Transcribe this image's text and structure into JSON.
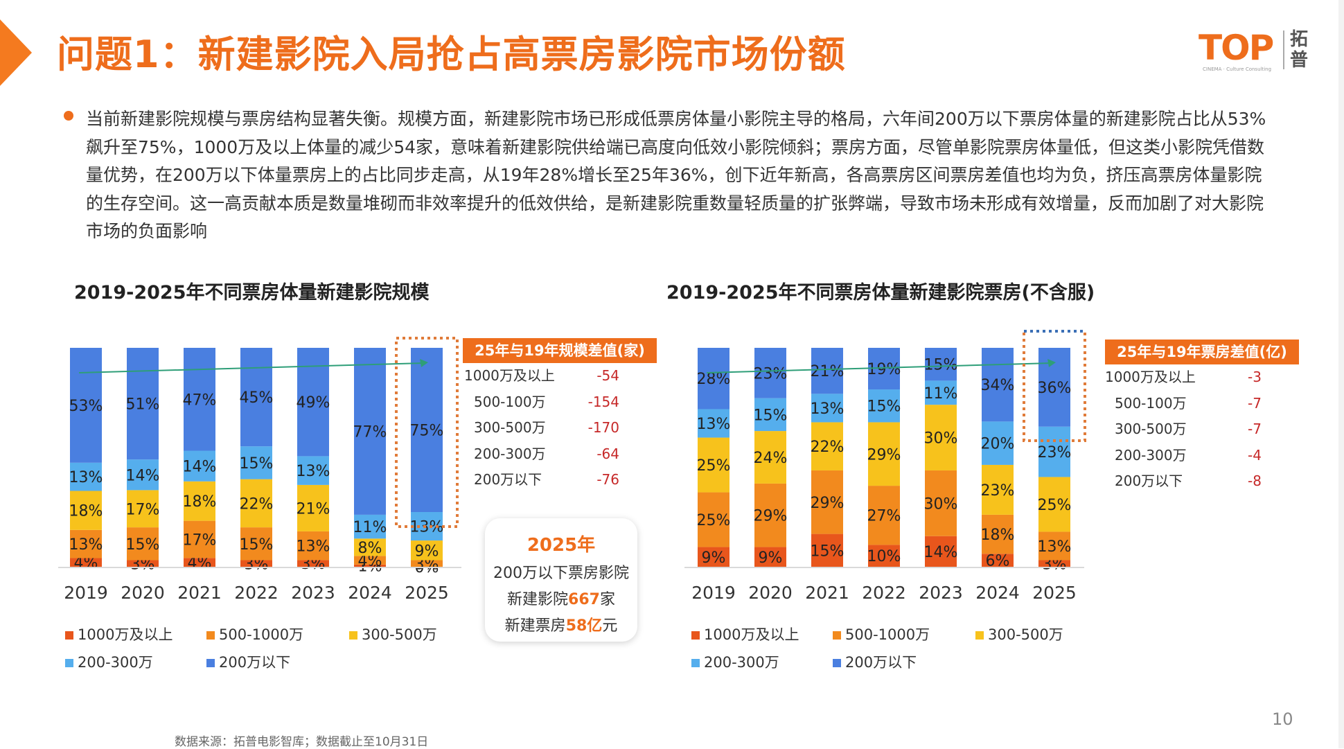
{
  "header": {
    "title": "问题1：新建影院入局抢占高票房影院市场份额",
    "logo_text": "TOP",
    "logo_cn": "拓普",
    "logo_sub": "CINEMA · Culture Consulting"
  },
  "intro": {
    "text": "当前新建影院规模与票房结构显著失衡。规模方面，新建影院市场已形成低票房体量小影院主导的格局，六年间200万以下票房体量的新建影院占比从53%飙升至75%，1000万及以上体量的减少54家，意味着新建影院供给端已高度向低效小影院倾斜；票房方面，尽管单影院票房体量低，但这类小影院凭借数量优势，在200万以下体量票房上的占比同步走高，从19年28%增长至25年36%，创下近年新高，各高票房区间票房差值也均为负，挤压高票房体量影院的生存空间。这一高贡献本质是数量堆砌而非效率提升的低效供给，是新建影院重数量轻质量的扩张弊端，导致市场未形成有效增量，反而加剧了对大影院市场的负面影响"
  },
  "chart_data": [
    {
      "type": "bar",
      "stacked": true,
      "normalized": true,
      "title": "2019-2025年不同票房体量新建影院规模",
      "categories": [
        "2019",
        "2020",
        "2021",
        "2022",
        "2023",
        "2024",
        "2025"
      ],
      "series": [
        {
          "name": "1000万及以上",
          "color": "#e8561c",
          "values": [
            4,
            3,
            4,
            3,
            3,
            1,
            0
          ]
        },
        {
          "name": "500-1000万",
          "color": "#f28a1e",
          "values": [
            13,
            15,
            17,
            15,
            13,
            4,
            3
          ]
        },
        {
          "name": "300-500万",
          "color": "#f7c21c",
          "values": [
            18,
            17,
            18,
            22,
            21,
            8,
            9
          ]
        },
        {
          "name": "200-300万",
          "color": "#55aeed",
          "values": [
            13,
            14,
            14,
            15,
            13,
            11,
            13
          ]
        },
        {
          "name": "200万以下",
          "color": "#4a7fe0",
          "values": [
            53,
            51,
            47,
            45,
            49,
            77,
            75
          ]
        }
      ],
      "labels": [
        [
          "4%",
          "13%",
          "18%",
          "13%",
          "53%"
        ],
        [
          "3%",
          "15%",
          "17%",
          "14%",
          "51%"
        ],
        [
          "4%",
          "17%",
          "18%",
          "14%",
          "47%"
        ],
        [
          "3%",
          "15%",
          "22%",
          "15%",
          "45%"
        ],
        [
          "3%",
          "13%",
          "21%",
          "13%",
          "49%"
        ],
        [
          "1%",
          "4%",
          "8%",
          "11%",
          "77%"
        ],
        [
          "0%",
          "3%",
          "9%",
          "13%",
          "75%"
        ]
      ],
      "highlight_category": "2025",
      "trend_series": "200万以下",
      "legend": "bottom"
    },
    {
      "type": "bar",
      "stacked": true,
      "normalized": true,
      "title": "2019-2025年不同票房体量新建影院票房(不含服)",
      "categories": [
        "2019",
        "2020",
        "2021",
        "2022",
        "2023",
        "2024",
        "2025"
      ],
      "series": [
        {
          "name": "1000万及以上",
          "color": "#e8561c",
          "values": [
            9,
            9,
            15,
            10,
            14,
            6,
            3
          ]
        },
        {
          "name": "500-1000万",
          "color": "#f28a1e",
          "values": [
            25,
            29,
            29,
            27,
            30,
            18,
            13
          ]
        },
        {
          "name": "300-500万",
          "color": "#f7c21c",
          "values": [
            25,
            24,
            22,
            29,
            30,
            23,
            25
          ]
        },
        {
          "name": "200-300万",
          "color": "#55aeed",
          "values": [
            13,
            15,
            13,
            15,
            11,
            20,
            23
          ]
        },
        {
          "name": "200万以下",
          "color": "#4a7fe0",
          "values": [
            28,
            23,
            21,
            19,
            15,
            34,
            36
          ]
        }
      ],
      "labels": [
        [
          "9%",
          "25%",
          "25%",
          "13%",
          "28%"
        ],
        [
          "9%",
          "29%",
          "24%",
          "15%",
          "23%"
        ],
        [
          "15%",
          "29%",
          "22%",
          "13%",
          "21%"
        ],
        [
          "10%",
          "27%",
          "29%",
          "15%",
          "19%"
        ],
        [
          "14%",
          "30%",
          "30%",
          "11%",
          "15%"
        ],
        [
          "6%",
          "18%",
          "23%",
          "20%",
          "34%"
        ],
        [
          "3%",
          "13%",
          "25%",
          "23%",
          "36%"
        ]
      ],
      "highlight_category": "2025",
      "trend_series": "200万以下",
      "legend": "bottom"
    }
  ],
  "diff_left": {
    "title": "25年与19年规模差值(家)",
    "rows": [
      {
        "label": "1000万及以上",
        "value": "-54"
      },
      {
        "label": "500-100万",
        "value": "-154"
      },
      {
        "label": "300-500万",
        "value": "-170"
      },
      {
        "label": "200-300万",
        "value": "-64"
      },
      {
        "label": "200万以下",
        "value": "-76"
      }
    ]
  },
  "diff_right": {
    "title": "25年与19年票房差值(亿)",
    "rows": [
      {
        "label": "1000万及以上",
        "value": "-3"
      },
      {
        "label": "500-100万",
        "value": "-7"
      },
      {
        "label": "300-500万",
        "value": "-7"
      },
      {
        "label": "200-300万",
        "value": "-4"
      },
      {
        "label": "200万以下",
        "value": "-8"
      }
    ]
  },
  "callout": {
    "year": "2025年",
    "line1": "200万以下票房影院",
    "line2_pre": "新建影院",
    "line2_num": "667",
    "line2_post": "家",
    "line3_pre": "新建票房",
    "line3_num": "58亿",
    "line3_post": "元"
  },
  "footer": {
    "source": "数据来源：拓普电影智库；数据截止至10月31日",
    "page": "10"
  }
}
